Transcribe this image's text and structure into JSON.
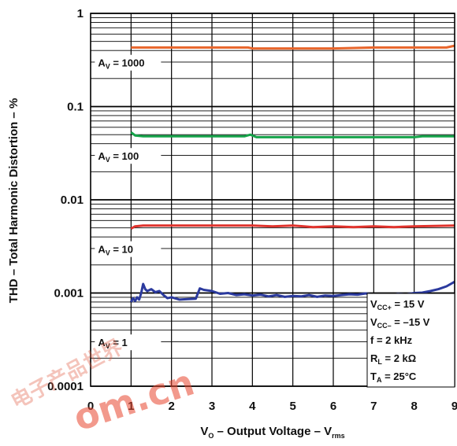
{
  "chart_data": {
    "type": "line",
    "title": "",
    "xlabel": {
      "main": "V",
      "main_sub": "O",
      "rest": " – Output Voltage – V",
      "rest_sub": "rms"
    },
    "ylabel": "THD – Total Harmonic Distortion – %",
    "xlim": [
      0,
      9
    ],
    "ylim": [
      0.0001,
      1
    ],
    "yscale": "log",
    "grid": "on",
    "x_ticks": [
      "0",
      "1",
      "2",
      "3",
      "4",
      "5",
      "6",
      "7",
      "8",
      "9"
    ],
    "y_ticks": [
      "1",
      "0.1",
      "0.01",
      "0.001",
      "0.0001"
    ],
    "series": [
      {
        "name": "A = 1000",
        "color": "#e8652b",
        "x": [
          1.0,
          2.0,
          3.0,
          3.9,
          4.0,
          5.0,
          6.0,
          7.0,
          8.0,
          8.8,
          9.0
        ],
        "y": [
          0.43,
          0.43,
          0.43,
          0.43,
          0.42,
          0.42,
          0.42,
          0.43,
          0.43,
          0.43,
          0.45
        ]
      },
      {
        "name": "A = 100",
        "color": "#16a34a",
        "x": [
          1.0,
          1.1,
          1.3,
          2.0,
          3.0,
          3.8,
          3.95,
          4.1,
          5.0,
          6.0,
          7.0,
          8.0,
          8.2,
          9.0
        ],
        "y": [
          0.053,
          0.049,
          0.048,
          0.048,
          0.048,
          0.048,
          0.05,
          0.047,
          0.047,
          0.047,
          0.047,
          0.047,
          0.048,
          0.048
        ]
      },
      {
        "name": "A = 10",
        "color": "#e0332d",
        "x": [
          1.0,
          1.1,
          1.3,
          2.0,
          3.0,
          4.0,
          4.5,
          5.0,
          5.5,
          6.0,
          6.5,
          7.0,
          7.5,
          8.0,
          9.0
        ],
        "y": [
          0.0049,
          0.0052,
          0.0053,
          0.0053,
          0.0053,
          0.0053,
          0.0052,
          0.0053,
          0.0051,
          0.0052,
          0.0051,
          0.0052,
          0.0051,
          0.0052,
          0.0053
        ]
      },
      {
        "name": "A = 1",
        "color": "#2b3a9e",
        "x": [
          1.0,
          1.05,
          1.1,
          1.15,
          1.2,
          1.25,
          1.3,
          1.35,
          1.4,
          1.5,
          1.6,
          1.7,
          1.8,
          1.9,
          2.0,
          2.2,
          2.4,
          2.6,
          2.7,
          2.8,
          3.0,
          3.2,
          3.4,
          3.6,
          3.8,
          4.0,
          4.2,
          4.4,
          4.6,
          4.8,
          5.0,
          5.2,
          5.4,
          5.6,
          5.8,
          6.0,
          6.2,
          6.4,
          6.6,
          6.8,
          7.0,
          7.2,
          7.4,
          7.6,
          7.8,
          8.0,
          8.2,
          8.4,
          8.6,
          8.8,
          9.0
        ],
        "y": [
          0.0008,
          0.00088,
          0.00082,
          0.0009,
          0.00085,
          0.001,
          0.00125,
          0.0011,
          0.00105,
          0.0011,
          0.00102,
          0.00105,
          0.00095,
          0.00088,
          0.0009,
          0.00085,
          0.00086,
          0.00087,
          0.00112,
          0.00108,
          0.00105,
          0.00098,
          0.001,
          0.00095,
          0.00097,
          0.00094,
          0.00096,
          0.00092,
          0.00095,
          0.00091,
          0.00093,
          0.00092,
          0.00095,
          0.00091,
          0.00094,
          0.00093,
          0.00095,
          0.00097,
          0.00096,
          0.00099,
          0.00096,
          0.00097,
          0.00095,
          0.00098,
          0.00097,
          0.001,
          0.00101,
          0.00105,
          0.0011,
          0.00118,
          0.00132
        ]
      }
    ],
    "series_labels": [
      {
        "main": "A",
        "sub": "V",
        "rest": " = 1000",
        "x": 1.0,
        "y": 0.29
      },
      {
        "main": "A",
        "sub": "V",
        "rest": " = 100",
        "x": 1.0,
        "y": 0.029
      },
      {
        "main": "A",
        "sub": "V",
        "rest": " = 10",
        "x": 1.0,
        "y": 0.0029
      },
      {
        "main": "A",
        "sub": "V",
        "rest": " = 1",
        "x": 1.0,
        "y": 0.00029
      }
    ],
    "conditions": [
      {
        "main": "V",
        "sub": "CC+",
        "rest": " = 15 V"
      },
      {
        "main": "V",
        "sub": "CC–",
        "rest": " = –15 V"
      },
      {
        "main": "f",
        "sub": "",
        "rest": " = 2 kHz"
      },
      {
        "main": "R",
        "sub": "L",
        "rest": " = 2 kΩ"
      },
      {
        "main": "T",
        "sub": "A",
        "rest": " = 25°C"
      }
    ]
  },
  "watermark": {
    "chinese": "电子产品世界",
    "latin": "om.cn"
  }
}
